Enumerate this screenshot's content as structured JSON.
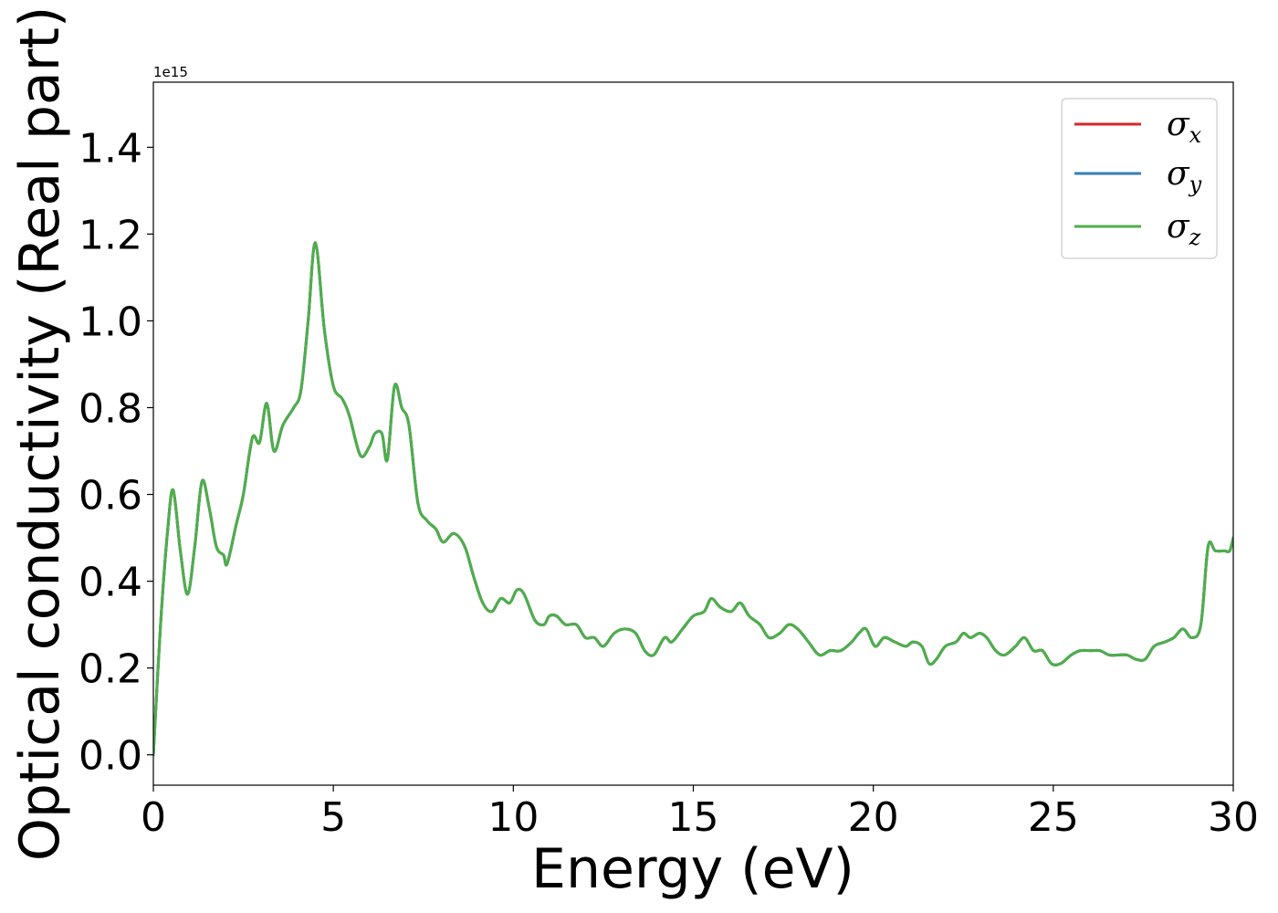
{
  "chart_data": {
    "type": "line",
    "xlabel": "Energy (eV)",
    "ylabel": "Optical conductivity (Real part)",
    "y_offset_text": "1e15",
    "xlim": [
      0,
      30
    ],
    "ylim": [
      -0.07,
      1.55
    ],
    "x_ticks": [
      0,
      5,
      10,
      15,
      20,
      25,
      30
    ],
    "x_tick_labels": [
      "0",
      "5",
      "10",
      "15",
      "20",
      "25",
      "30"
    ],
    "y_ticks": [
      0.0,
      0.2,
      0.4,
      0.6,
      0.8,
      1.0,
      1.2,
      1.4
    ],
    "y_tick_labels": [
      "0.0",
      "0.2",
      "0.4",
      "0.6",
      "0.8",
      "1.0",
      "1.2",
      "1.4"
    ],
    "grid": false,
    "legend_position": "top-right",
    "x": [
      0,
      0.2,
      0.4,
      0.55,
      0.75,
      0.95,
      1.15,
      1.35,
      1.55,
      1.75,
      1.95,
      2.05,
      2.3,
      2.5,
      2.75,
      2.95,
      3.15,
      3.35,
      3.6,
      3.9,
      4.1,
      4.3,
      4.5,
      4.75,
      5.0,
      5.25,
      5.45,
      5.75,
      6.0,
      6.15,
      6.35,
      6.5,
      6.7,
      6.9,
      7.1,
      7.35,
      7.6,
      7.85,
      8.05,
      8.35,
      8.65,
      8.9,
      9.15,
      9.4,
      9.65,
      9.9,
      10.1,
      10.3,
      10.6,
      10.85,
      11.0,
      11.2,
      11.45,
      11.75,
      12.0,
      12.25,
      12.5,
      12.8,
      13.1,
      13.4,
      13.65,
      13.9,
      14.2,
      14.4,
      14.7,
      15.0,
      15.3,
      15.5,
      15.75,
      16.05,
      16.3,
      16.55,
      16.85,
      17.1,
      17.4,
      17.65,
      17.9,
      18.2,
      18.5,
      18.8,
      19.1,
      19.4,
      19.6,
      19.8,
      20.05,
      20.3,
      20.6,
      20.9,
      21.1,
      21.35,
      21.55,
      21.75,
      22.0,
      22.3,
      22.5,
      22.7,
      22.95,
      23.15,
      23.4,
      23.65,
      23.95,
      24.2,
      24.45,
      24.7,
      24.95,
      25.2,
      25.5,
      25.75,
      26.05,
      26.3,
      26.55,
      26.8,
      27.05,
      27.3,
      27.55,
      27.8,
      28.1,
      28.35,
      28.6,
      28.85,
      29.1,
      29.3,
      29.5,
      29.75,
      29.9,
      30.0
    ],
    "series": [
      {
        "name": "σ_x",
        "color": "#d62728",
        "values": [
          0.0,
          0.3,
          0.52,
          0.61,
          0.47,
          0.37,
          0.48,
          0.63,
          0.57,
          0.48,
          0.46,
          0.44,
          0.53,
          0.6,
          0.73,
          0.72,
          0.81,
          0.7,
          0.76,
          0.8,
          0.84,
          1.0,
          1.18,
          0.98,
          0.85,
          0.82,
          0.78,
          0.69,
          0.71,
          0.74,
          0.74,
          0.68,
          0.85,
          0.8,
          0.76,
          0.58,
          0.54,
          0.52,
          0.49,
          0.51,
          0.48,
          0.41,
          0.35,
          0.33,
          0.36,
          0.35,
          0.38,
          0.37,
          0.31,
          0.3,
          0.32,
          0.32,
          0.3,
          0.3,
          0.27,
          0.27,
          0.25,
          0.28,
          0.29,
          0.28,
          0.24,
          0.23,
          0.27,
          0.26,
          0.29,
          0.32,
          0.33,
          0.36,
          0.34,
          0.33,
          0.35,
          0.32,
          0.3,
          0.27,
          0.28,
          0.3,
          0.29,
          0.26,
          0.23,
          0.24,
          0.24,
          0.26,
          0.28,
          0.29,
          0.25,
          0.27,
          0.26,
          0.25,
          0.26,
          0.25,
          0.21,
          0.22,
          0.25,
          0.26,
          0.28,
          0.27,
          0.28,
          0.27,
          0.24,
          0.23,
          0.25,
          0.27,
          0.24,
          0.24,
          0.21,
          0.21,
          0.23,
          0.24,
          0.24,
          0.24,
          0.23,
          0.23,
          0.23,
          0.22,
          0.22,
          0.25,
          0.26,
          0.27,
          0.29,
          0.27,
          0.3,
          0.48,
          0.47,
          0.47,
          0.47,
          0.5
        ]
      },
      {
        "name": "σ_y",
        "color": "#377eb8",
        "values": [
          0.0,
          0.3,
          0.52,
          0.61,
          0.47,
          0.37,
          0.48,
          0.63,
          0.57,
          0.48,
          0.46,
          0.44,
          0.53,
          0.6,
          0.73,
          0.72,
          0.81,
          0.7,
          0.76,
          0.8,
          0.84,
          1.0,
          1.18,
          0.98,
          0.85,
          0.82,
          0.78,
          0.69,
          0.71,
          0.74,
          0.74,
          0.68,
          0.85,
          0.8,
          0.76,
          0.58,
          0.54,
          0.52,
          0.49,
          0.51,
          0.48,
          0.41,
          0.35,
          0.33,
          0.36,
          0.35,
          0.38,
          0.37,
          0.31,
          0.3,
          0.32,
          0.32,
          0.3,
          0.3,
          0.27,
          0.27,
          0.25,
          0.28,
          0.29,
          0.28,
          0.24,
          0.23,
          0.27,
          0.26,
          0.29,
          0.32,
          0.33,
          0.36,
          0.34,
          0.33,
          0.35,
          0.32,
          0.3,
          0.27,
          0.28,
          0.3,
          0.29,
          0.26,
          0.23,
          0.24,
          0.24,
          0.26,
          0.28,
          0.29,
          0.25,
          0.27,
          0.26,
          0.25,
          0.26,
          0.25,
          0.21,
          0.22,
          0.25,
          0.26,
          0.28,
          0.27,
          0.28,
          0.27,
          0.24,
          0.23,
          0.25,
          0.27,
          0.24,
          0.24,
          0.21,
          0.21,
          0.23,
          0.24,
          0.24,
          0.24,
          0.23,
          0.23,
          0.23,
          0.22,
          0.22,
          0.25,
          0.26,
          0.27,
          0.29,
          0.27,
          0.3,
          0.48,
          0.47,
          0.47,
          0.47,
          0.5
        ]
      },
      {
        "name": "σ_z",
        "color": "#4daf4a",
        "values": [
          0.0,
          0.3,
          0.52,
          0.61,
          0.47,
          0.37,
          0.48,
          0.63,
          0.57,
          0.48,
          0.46,
          0.44,
          0.53,
          0.6,
          0.73,
          0.72,
          0.81,
          0.7,
          0.76,
          0.8,
          0.84,
          1.0,
          1.18,
          0.98,
          0.85,
          0.82,
          0.78,
          0.69,
          0.71,
          0.74,
          0.74,
          0.68,
          0.85,
          0.8,
          0.76,
          0.58,
          0.54,
          0.52,
          0.49,
          0.51,
          0.48,
          0.41,
          0.35,
          0.33,
          0.36,
          0.35,
          0.38,
          0.37,
          0.31,
          0.3,
          0.32,
          0.32,
          0.3,
          0.3,
          0.27,
          0.27,
          0.25,
          0.28,
          0.29,
          0.28,
          0.24,
          0.23,
          0.27,
          0.26,
          0.29,
          0.32,
          0.33,
          0.36,
          0.34,
          0.33,
          0.35,
          0.32,
          0.3,
          0.27,
          0.28,
          0.3,
          0.29,
          0.26,
          0.23,
          0.24,
          0.24,
          0.26,
          0.28,
          0.29,
          0.25,
          0.27,
          0.26,
          0.25,
          0.26,
          0.25,
          0.21,
          0.22,
          0.25,
          0.26,
          0.28,
          0.27,
          0.28,
          0.27,
          0.24,
          0.23,
          0.25,
          0.27,
          0.24,
          0.24,
          0.21,
          0.21,
          0.23,
          0.24,
          0.24,
          0.24,
          0.23,
          0.23,
          0.23,
          0.22,
          0.22,
          0.25,
          0.26,
          0.27,
          0.29,
          0.27,
          0.3,
          0.48,
          0.47,
          0.47,
          0.47,
          0.5
        ]
      }
    ],
    "legend": [
      {
        "symbol": "σ",
        "subscript": "x",
        "color": "#d62728"
      },
      {
        "symbol": "σ",
        "subscript": "y",
        "color": "#377eb8"
      },
      {
        "symbol": "σ",
        "subscript": "z",
        "color": "#4daf4a"
      }
    ]
  }
}
